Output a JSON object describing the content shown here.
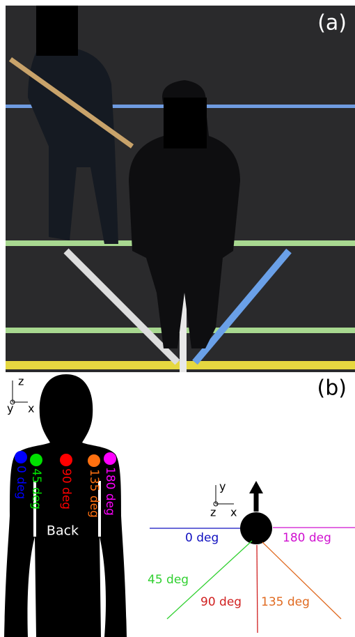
{
  "panel_a": {
    "label": "(a)"
  },
  "panel_b": {
    "label": "(b)",
    "body_axes": {
      "z": "z",
      "y": "y",
      "x": "x"
    },
    "body_markers": [
      {
        "label": "0 deg",
        "color": "#0000ff"
      },
      {
        "label": "45 deg",
        "color": "#00e000"
      },
      {
        "label": "90 deg",
        "color": "#ff0000"
      },
      {
        "label": "135 deg",
        "color": "#ff7010"
      },
      {
        "label": "180 deg",
        "color": "#ff00ff"
      }
    ],
    "back_label": "Back",
    "top_axes": {
      "y": "y",
      "z": "z",
      "x": "x"
    },
    "directions": [
      {
        "label": "0 deg",
        "color": "#1010c0"
      },
      {
        "label": "45 deg",
        "color": "#30d030"
      },
      {
        "label": "90 deg",
        "color": "#d02020"
      },
      {
        "label": "135 deg",
        "color": "#e06a20"
      },
      {
        "label": "180 deg",
        "color": "#d010d0"
      }
    ]
  }
}
